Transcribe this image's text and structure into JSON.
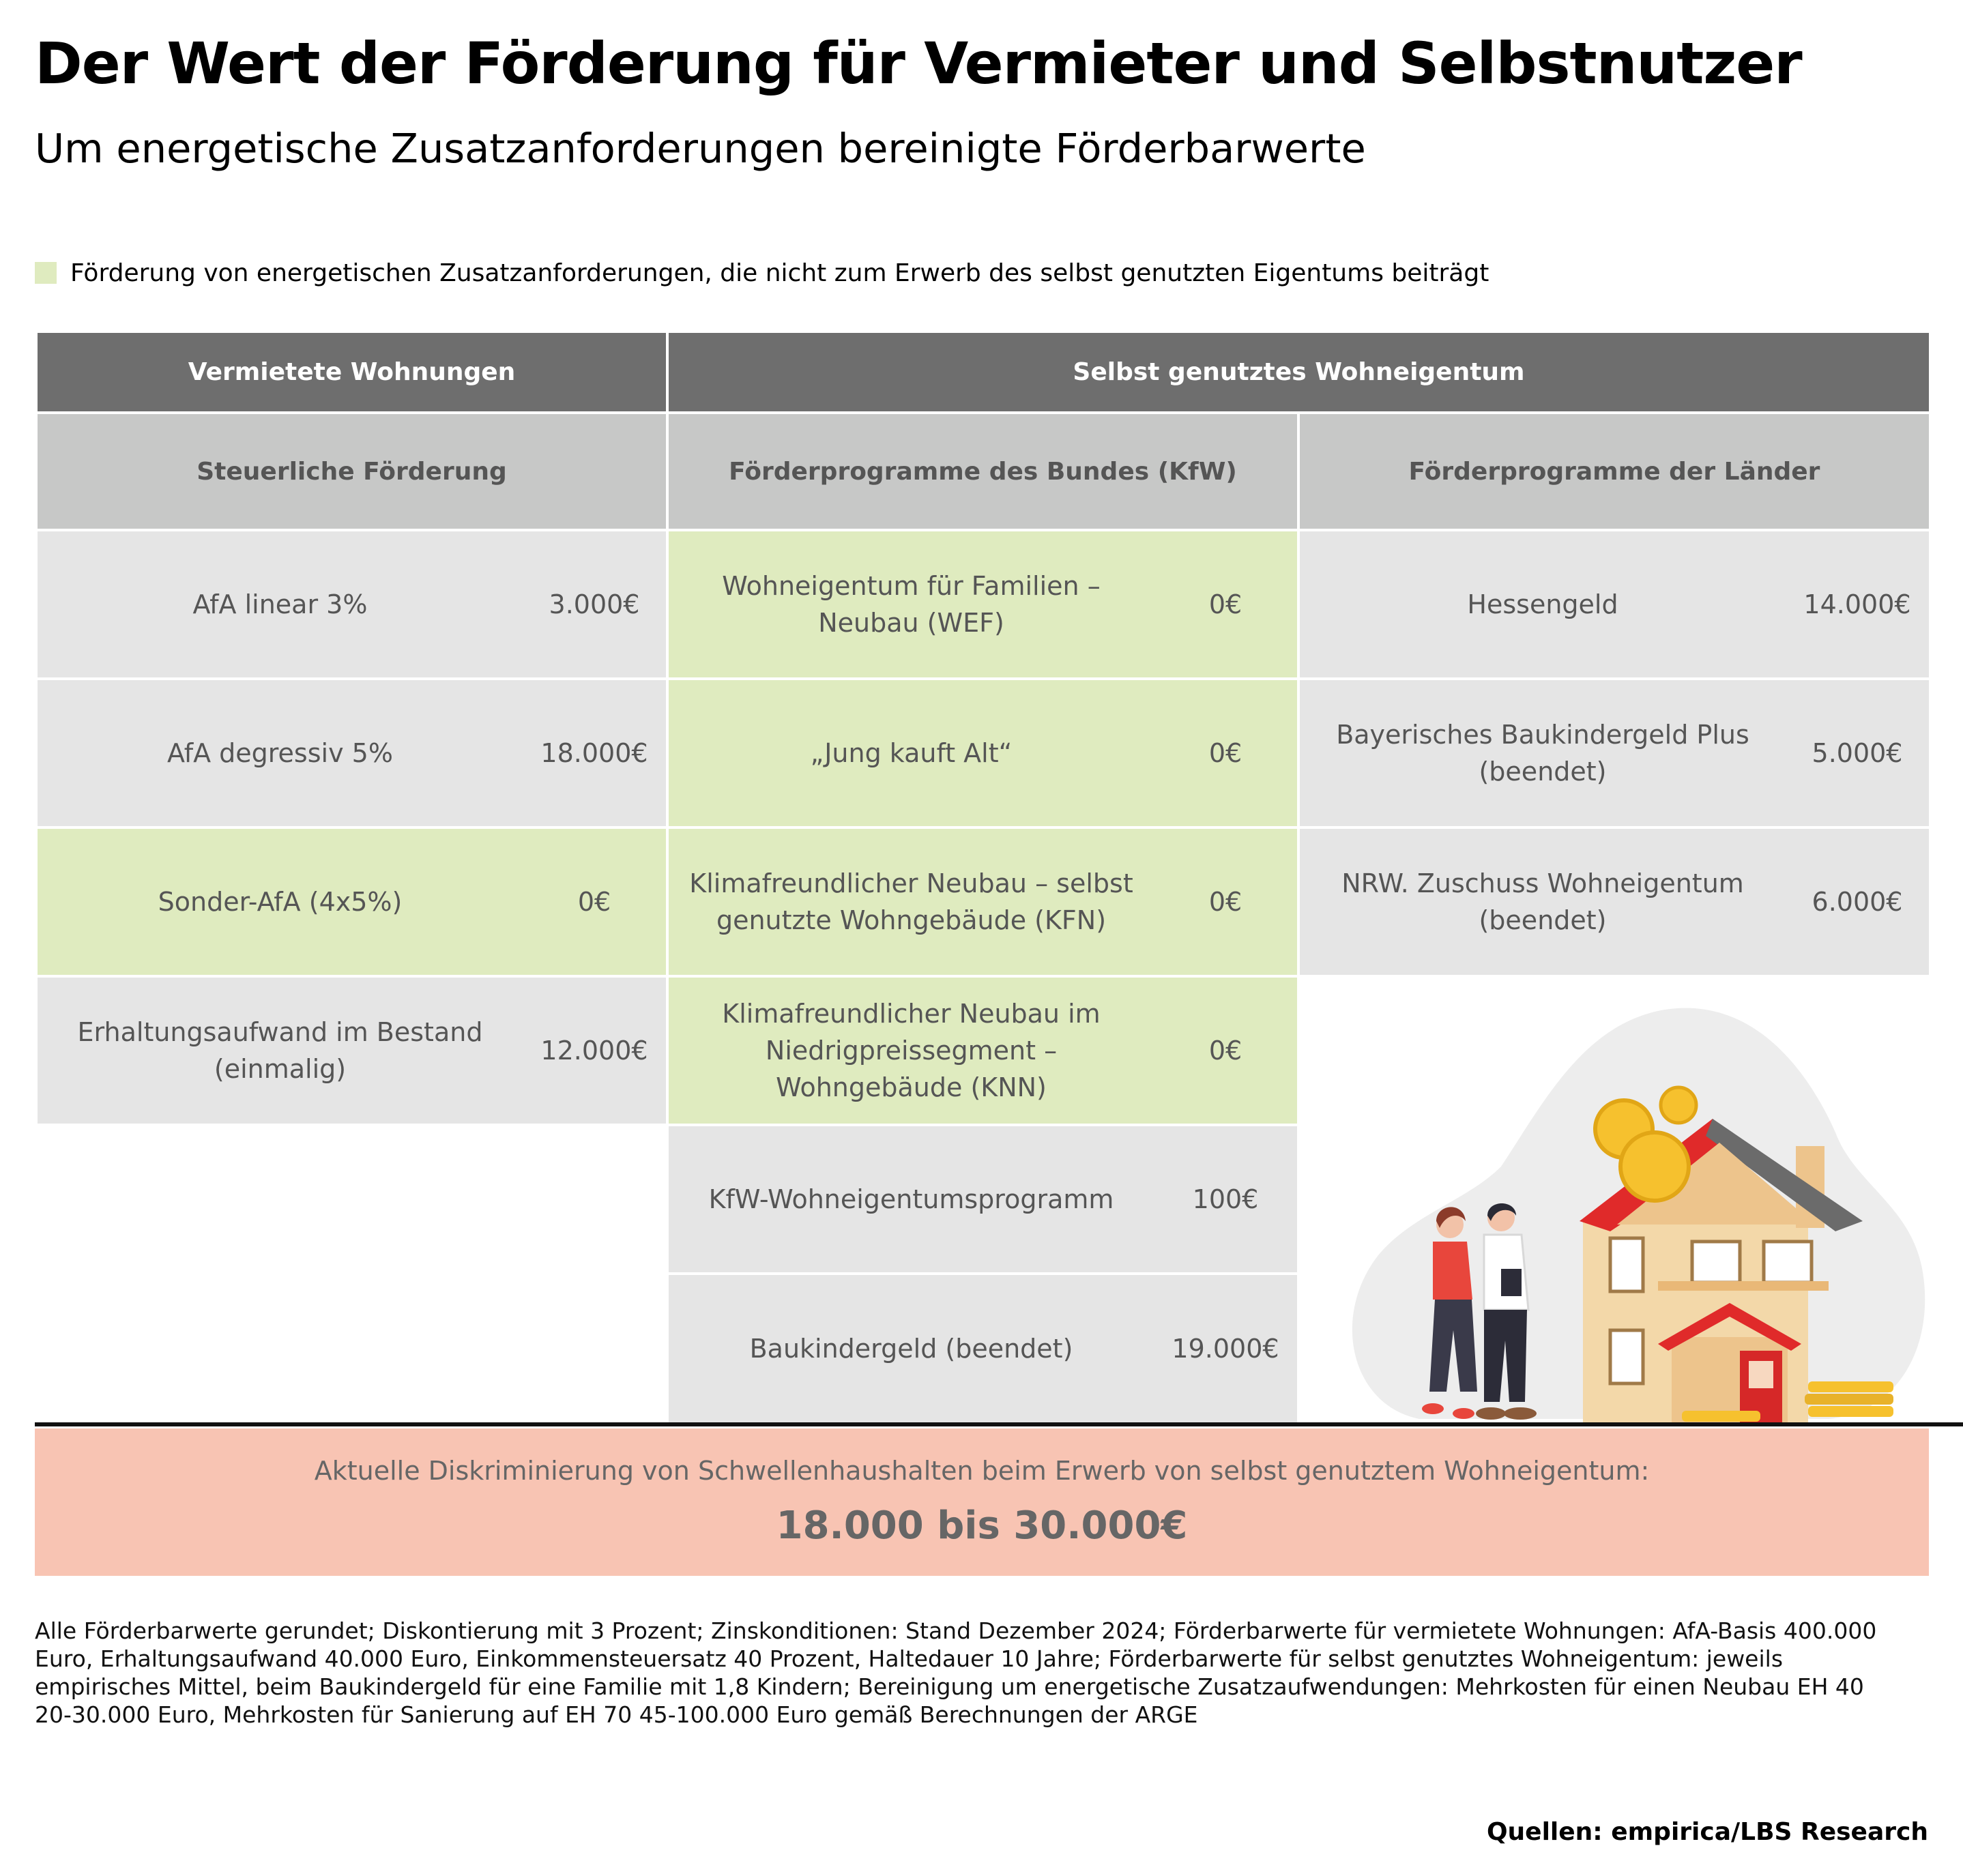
{
  "title": "Der Wert der Förderung für Vermieter und Selbstnutzer",
  "subtitle": "Um energetische Zusatzanforderungen bereinigte Förderbarwerte",
  "legend": {
    "label": "Förderung von energetischen Zusatzanforderungen, die nicht zum Erwerb des selbst genutzten Eigentums beiträgt",
    "color": "#dfebbf"
  },
  "colors": {
    "header": "#6e6e6e",
    "subheader": "#c7c8c7",
    "cell_gray": "#e5e5e5",
    "cell_green": "#dfebbf",
    "result_bg": "#f8c4b3"
  },
  "chart_data": {
    "type": "table",
    "columns": [
      {
        "group": "Vermietete Wohnungen",
        "header": "Steuerliche Förderung",
        "rows": [
          {
            "label": "AfA linear 3%",
            "value": "3.000€",
            "energy_related": false
          },
          {
            "label": "AfA degressiv 5%",
            "value": "18.000€",
            "energy_related": false
          },
          {
            "label": "Sonder-AfA (4x5%)",
            "value": "0€",
            "energy_related": true
          },
          {
            "label": "Erhaltungsaufwand im Bestand (einmalig)",
            "value": "12.000€",
            "energy_related": false
          }
        ]
      },
      {
        "group": "Selbst genutztes Wohneigentum",
        "header": "Förderprogramme des Bundes (KfW)",
        "rows": [
          {
            "label": "Wohneigentum für Familien – Neubau (WEF)",
            "value": "0€",
            "energy_related": true
          },
          {
            "label": "„Jung kauft Alt“",
            "value": "0€",
            "energy_related": true
          },
          {
            "label": "Klimafreundlicher Neubau – selbst genutzte Wohngebäude (KFN)",
            "value": "0€",
            "energy_related": true
          },
          {
            "label": "Klimafreundlicher Neubau im Niedrigpreissegment – Wohngebäude (KNN)",
            "value": "0€",
            "energy_related": true
          },
          {
            "label": "KfW-Wohneigentumsprogramm",
            "value": "100€",
            "energy_related": false
          },
          {
            "label": "Baukindergeld (beendet)",
            "value": "19.000€",
            "energy_related": false
          }
        ]
      },
      {
        "group": "Selbst genutztes Wohneigentum",
        "header": "Förderprogramme der Länder",
        "rows": [
          {
            "label": "Hessengeld",
            "value": "14.000€",
            "energy_related": false
          },
          {
            "label": "Bayerisches Baukindergeld Plus (beendet)",
            "value": "5.000€",
            "energy_related": false
          },
          {
            "label": "NRW. Zuschuss Wohneigentum (beendet)",
            "value": "6.000€",
            "energy_related": false
          }
        ]
      }
    ]
  },
  "result": {
    "text": "Aktuelle Diskriminierung von Schwellenhaushalten beim Erwerb von selbst genutztem Wohneigentum:",
    "value": "18.000 bis 30.000€"
  },
  "footnote": "Alle Förderbarwerte gerundet; Diskontierung mit 3 Prozent; Zinskonditionen: Stand Dezember 2024; Förderbarwerte für vermietete Wohnungen: AfA-Basis 400.000 Euro, Erhaltungsaufwand 40.000 Euro, Einkommensteuersatz 40 Prozent, Haltedauer 10 Jahre; Förderbarwerte für selbst genutztes Wohneigentum: jeweils empirisches Mittel, beim Baukindergeld für eine Familie mit 1,8 Kindern; Bereinigung um energetische Zusatzaufwendungen: Mehrkosten für einen Neubau EH 40 20-30.000 Euro, Mehrkosten für Sanierung auf EH 70 45-100.000 Euro gemäß Berechnungen der ARGE",
  "source": "Quellen: empirica/LBS Research"
}
